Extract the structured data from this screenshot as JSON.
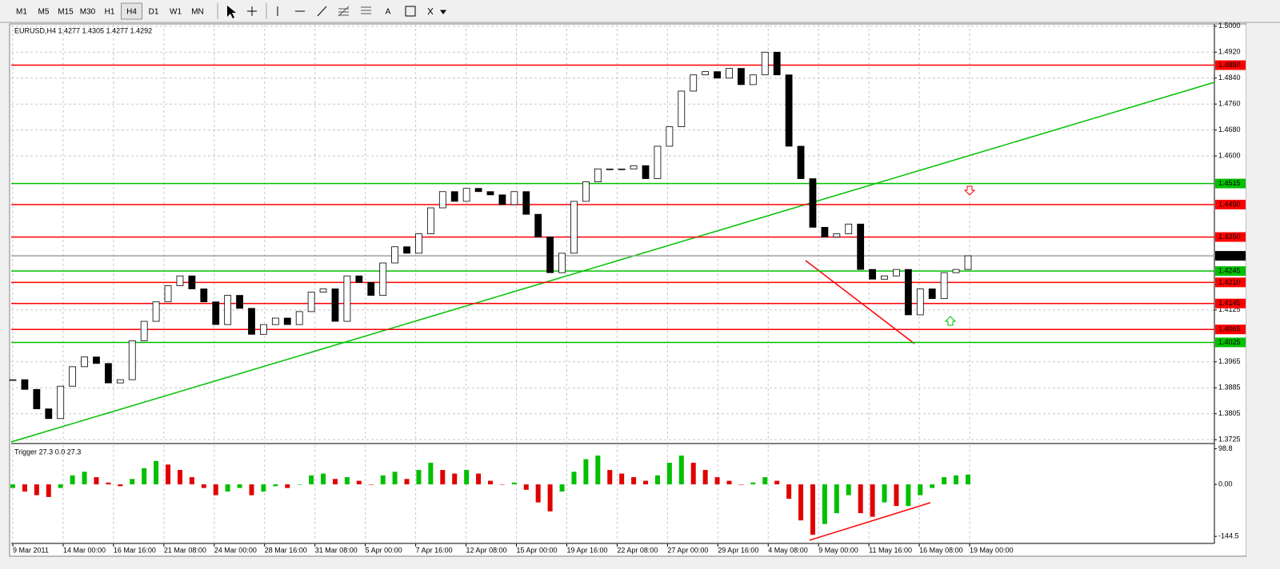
{
  "toolbar": {
    "timeframes": [
      "M1",
      "M5",
      "M15",
      "M30",
      "H1",
      "H4",
      "D1",
      "W1",
      "MN"
    ],
    "active": "H4",
    "text_tool": "A"
  },
  "chart_data": [
    {
      "type": "candlestick",
      "title": "EURUSD,H4  1.4277 1.4305 1.4277 1.4292",
      "xtick_labels": [
        "9 Mar 2011",
        "14 Mar 00:00",
        "16 Mar 16:00",
        "21 Mar 08:00",
        "24 Mar 00:00",
        "28 Mar 16:00",
        "31 Mar 08:00",
        "5 Apr 00:00",
        "7 Apr 16:00",
        "12 Apr 08:00",
        "15 Apr 00:00",
        "19 Apr 16:00",
        "22 Apr 08:00",
        "27 Apr 00:00",
        "29 Apr 16:00",
        "4 May 08:00",
        "9 May 00:00",
        "11 May 16:00",
        "16 May 08:00",
        "19 May 00:00"
      ],
      "values": [
        1.391,
        1.388,
        1.382,
        1.379,
        1.389,
        1.395,
        1.398,
        1.396,
        1.39,
        1.391,
        1.403,
        1.409,
        1.415,
        1.42,
        1.423,
        1.419,
        1.415,
        1.408,
        1.417,
        1.413,
        1.405,
        1.408,
        1.41,
        1.408,
        1.412,
        1.418,
        1.419,
        1.409,
        1.423,
        1.421,
        1.417,
        1.427,
        1.432,
        1.43,
        1.436,
        1.444,
        1.449,
        1.446,
        1.45,
        1.449,
        1.448,
        1.445,
        1.449,
        1.442,
        1.435,
        1.424,
        1.43,
        1.446,
        1.452,
        1.456,
        1.456,
        1.456,
        1.457,
        1.453,
        1.463,
        1.469,
        1.48,
        1.485,
        1.486,
        1.484,
        1.487,
        1.482,
        1.485,
        1.492,
        1.485,
        1.463,
        1.453,
        1.438,
        1.435,
        1.436,
        1.439,
        1.425,
        1.422,
        1.423,
        1.425,
        1.411,
        1.419,
        1.416,
        1.424,
        1.425,
        1.4292
      ],
      "up_color": "#ffffff",
      "down_color": "#000000",
      "ylim": [
        1.3718,
        1.5007
      ],
      "yticks": [
        {
          "value": 1.5,
          "label": "1.5000"
        },
        {
          "value": 1.492,
          "label": "1.4920"
        },
        {
          "value": 1.484,
          "label": "1.4840"
        },
        {
          "value": 1.476,
          "label": "1.4760"
        },
        {
          "value": 1.468,
          "label": "1.4680"
        },
        {
          "value": 1.46,
          "label": "1.4600"
        },
        {
          "value": 1.4125,
          "label": "1.4125"
        },
        {
          "value": 1.3965,
          "label": "1.3965"
        },
        {
          "value": 1.3885,
          "label": "1.3885"
        },
        {
          "value": 1.3805,
          "label": "1.3805"
        },
        {
          "value": 1.3725,
          "label": "1.3725"
        }
      ],
      "grid": true,
      "levels": [
        {
          "value": 1.488,
          "label": "1.4880",
          "color": "#ff0000"
        },
        {
          "value": 1.4515,
          "label": "1.4515",
          "color": "#00c000"
        },
        {
          "value": 1.445,
          "label": "1.4450",
          "color": "#ff0000"
        },
        {
          "value": 1.435,
          "label": "1.4350",
          "color": "#ff0000"
        },
        {
          "value": 1.4292,
          "label": "1.4292",
          "color": "#000000"
        },
        {
          "value": 1.4245,
          "label": "1.4245",
          "color": "#00c000"
        },
        {
          "value": 1.421,
          "label": "1.4210",
          "color": "#ff0000"
        },
        {
          "value": 1.4145,
          "label": "1.4145",
          "color": "#ff0000"
        },
        {
          "value": 1.4065,
          "label": "1.4065",
          "color": "#ff0000"
        },
        {
          "value": 1.4025,
          "label": "1.4025",
          "color": "#00c000"
        }
      ]
    },
    {
      "type": "histogram",
      "title": "Trigger 27.3 0.0 27.3",
      "values": [
        -10,
        -20,
        -30,
        -35,
        -10,
        25,
        35,
        20,
        5,
        -5,
        15,
        45,
        65,
        55,
        40,
        20,
        -10,
        -30,
        -20,
        -10,
        -30,
        -20,
        -5,
        -10,
        0,
        25,
        30,
        15,
        20,
        10,
        0,
        25,
        35,
        15,
        40,
        60,
        40,
        30,
        40,
        30,
        10,
        0,
        5,
        -15,
        -50,
        -75,
        -20,
        35,
        70,
        80,
        40,
        30,
        20,
        10,
        25,
        60,
        80,
        60,
        40,
        20,
        10,
        0,
        5,
        20,
        10,
        -40,
        -100,
        -140,
        -110,
        -80,
        -30,
        -80,
        -90,
        -50,
        -60,
        -60,
        -30,
        -10,
        20,
        25,
        27.3
      ],
      "up_color": "#00c000",
      "down_color": "#e00000",
      "ylim": [
        -164,
        109
      ],
      "yticks": [
        98.8,
        {
          "value": 0,
          "label": "0.00"
        },
        -144.5
      ]
    }
  ]
}
